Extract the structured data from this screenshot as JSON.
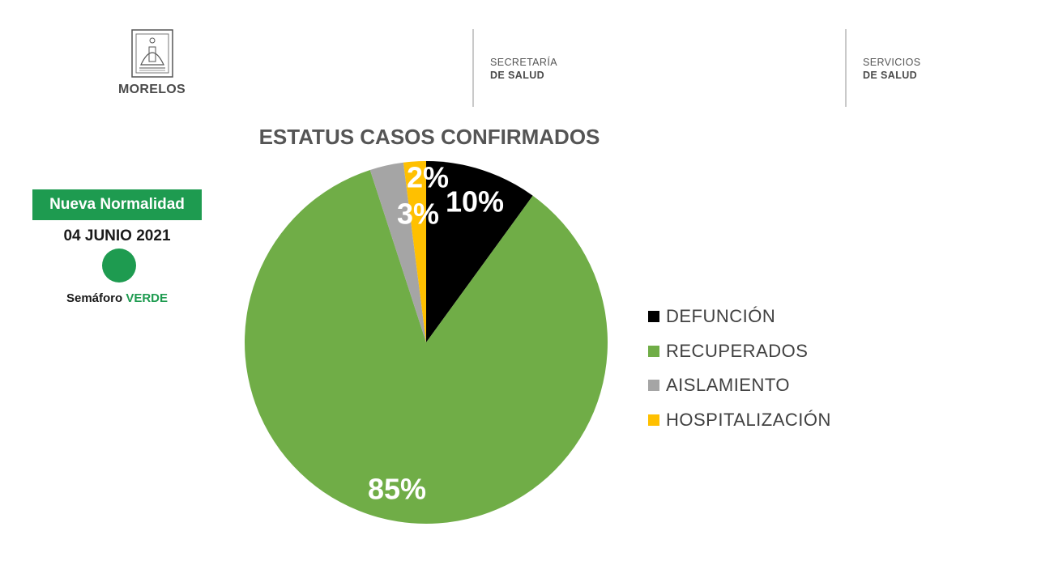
{
  "header": {
    "logo_text": "MORELOS",
    "dept1": {
      "line1": "SECRETARÍA",
      "line2": "DE SALUD"
    },
    "dept2": {
      "line1": "SERVICIOS",
      "line2": "DE SALUD"
    }
  },
  "status": {
    "badge": "Nueva Normalidad",
    "date": "04 JUNIO 2021",
    "semaforo_label": "Semáforo",
    "semaforo_value": "VERDE",
    "color": "#1e9b50"
  },
  "chart_data": {
    "type": "pie",
    "title": "ESTATUS CASOS CONFIRMADOS",
    "slices": [
      {
        "name": "DEFUNCIÓN",
        "value": 10,
        "label": "10%",
        "color": "#000000",
        "label_color": "#ffffff"
      },
      {
        "name": "RECUPERADOS",
        "value": 85,
        "label": "85%",
        "color": "#70ad47",
        "label_color": "#ffffff"
      },
      {
        "name": "AISLAMIENTO",
        "value": 3,
        "label": "3%",
        "color": "#a5a5a5",
        "label_color": "#ffffff"
      },
      {
        "name": "HOSPITALIZACIÓN",
        "value": 2,
        "label": "2%",
        "color": "#ffc000",
        "label_color": "#ffffff"
      }
    ],
    "legend_position": "right"
  }
}
